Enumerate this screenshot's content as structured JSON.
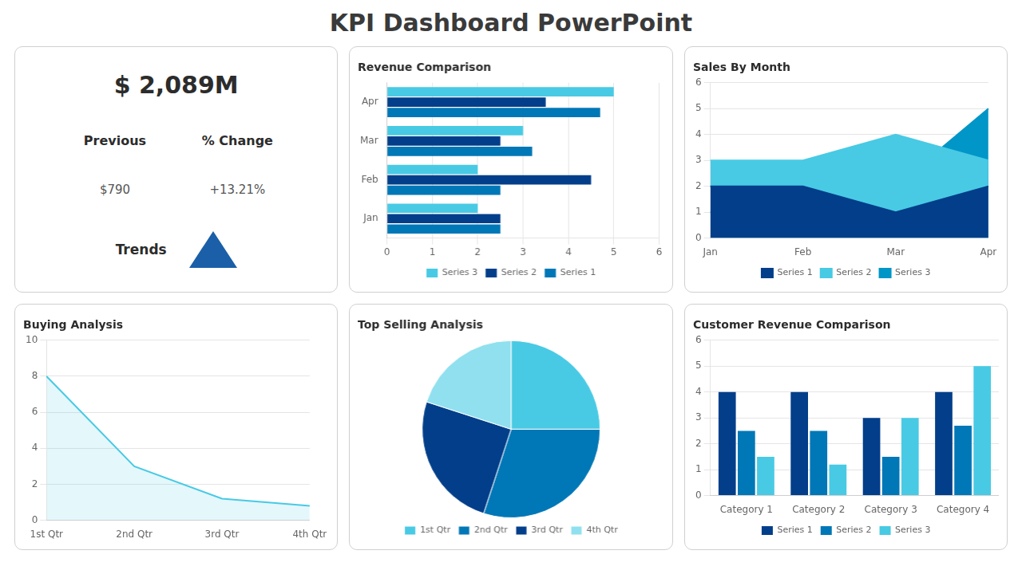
{
  "title": "KPI Dashboard PowerPoint",
  "chart_data": [
    {
      "type": "kpi",
      "title": "$ 2,089M",
      "annotations": [
        "Previous",
        "% Change",
        "$790",
        "+13.21%",
        "Trends"
      ]
    },
    {
      "type": "bar",
      "orientation": "horizontal",
      "title": "Revenue Comparison",
      "categories": [
        "Jan",
        "Feb",
        "Mar",
        "Apr"
      ],
      "series": [
        {
          "name": "Series 3",
          "color": "#48cae4",
          "values": [
            2.0,
            2.0,
            3.0,
            5.0
          ]
        },
        {
          "name": "Series 2",
          "color": "#023e8a",
          "values": [
            2.5,
            4.5,
            2.5,
            3.5
          ]
        },
        {
          "name": "Series 1",
          "color": "#0077b6",
          "values": [
            2.5,
            2.5,
            3.2,
            4.7
          ]
        }
      ],
      "xlim": [
        0,
        6
      ],
      "xticks": [
        0,
        1,
        2,
        3,
        4,
        5,
        6
      ],
      "grid": true,
      "legend": "bottom",
      "stacked": false
    },
    {
      "type": "area",
      "title": "Sales By Month",
      "categories": [
        "Jan",
        "Feb",
        "Mar",
        "Apr"
      ],
      "series": [
        {
          "name": "Series 1",
          "color": "#023e8a",
          "values": [
            2,
            2,
            1,
            2
          ]
        },
        {
          "name": "Series 2",
          "color": "#48cae4",
          "values": [
            3,
            3,
            4,
            3
          ]
        },
        {
          "name": "Series 3",
          "color": "#0096c7",
          "values": [
            1,
            1,
            2,
            5
          ]
        }
      ],
      "ylim": [
        0,
        6
      ],
      "yticks": [
        0,
        1,
        2,
        3,
        4,
        5,
        6
      ],
      "grid": true,
      "legend": "bottom",
      "stacked": false
    },
    {
      "type": "area",
      "title": "Buying Analysis",
      "categories": [
        "1st Qtr",
        "2nd Qtr",
        "3rd Qtr",
        "4th Qtr"
      ],
      "values": [
        8.0,
        3.0,
        1.2,
        0.8
      ],
      "color": "#48cae4",
      "ylim": [
        0,
        10
      ],
      "yticks": [
        0,
        2,
        4,
        6,
        8,
        10
      ],
      "grid": true
    },
    {
      "type": "pie",
      "title": "Top Selling Analysis",
      "categories": [
        "1st Qtr",
        "2nd Qtr",
        "3rd Qtr",
        "4th Qtr"
      ],
      "values": [
        25,
        30,
        25,
        20
      ],
      "colors": [
        "#48cae4",
        "#0077b6",
        "#023e8a",
        "#90e0ef"
      ],
      "legend": "bottom"
    },
    {
      "type": "bar",
      "title": "Customer Revenue Comparison",
      "categories": [
        "Category 1",
        "Category 2",
        "Category 3",
        "Category 4"
      ],
      "series": [
        {
          "name": "Series 1",
          "color": "#023e8a",
          "values": [
            4.0,
            4.0,
            3.0,
            4.0
          ]
        },
        {
          "name": "Series 2",
          "color": "#0077b6",
          "values": [
            2.5,
            2.5,
            1.5,
            2.7
          ]
        },
        {
          "name": "Series 3",
          "color": "#48cae4",
          "values": [
            1.5,
            1.2,
            3.0,
            5.0
          ]
        }
      ],
      "ylim": [
        0,
        6
      ],
      "yticks": [
        0,
        1,
        2,
        3,
        4,
        5,
        6
      ],
      "grid": true,
      "legend": "bottom",
      "stacked": false
    }
  ]
}
